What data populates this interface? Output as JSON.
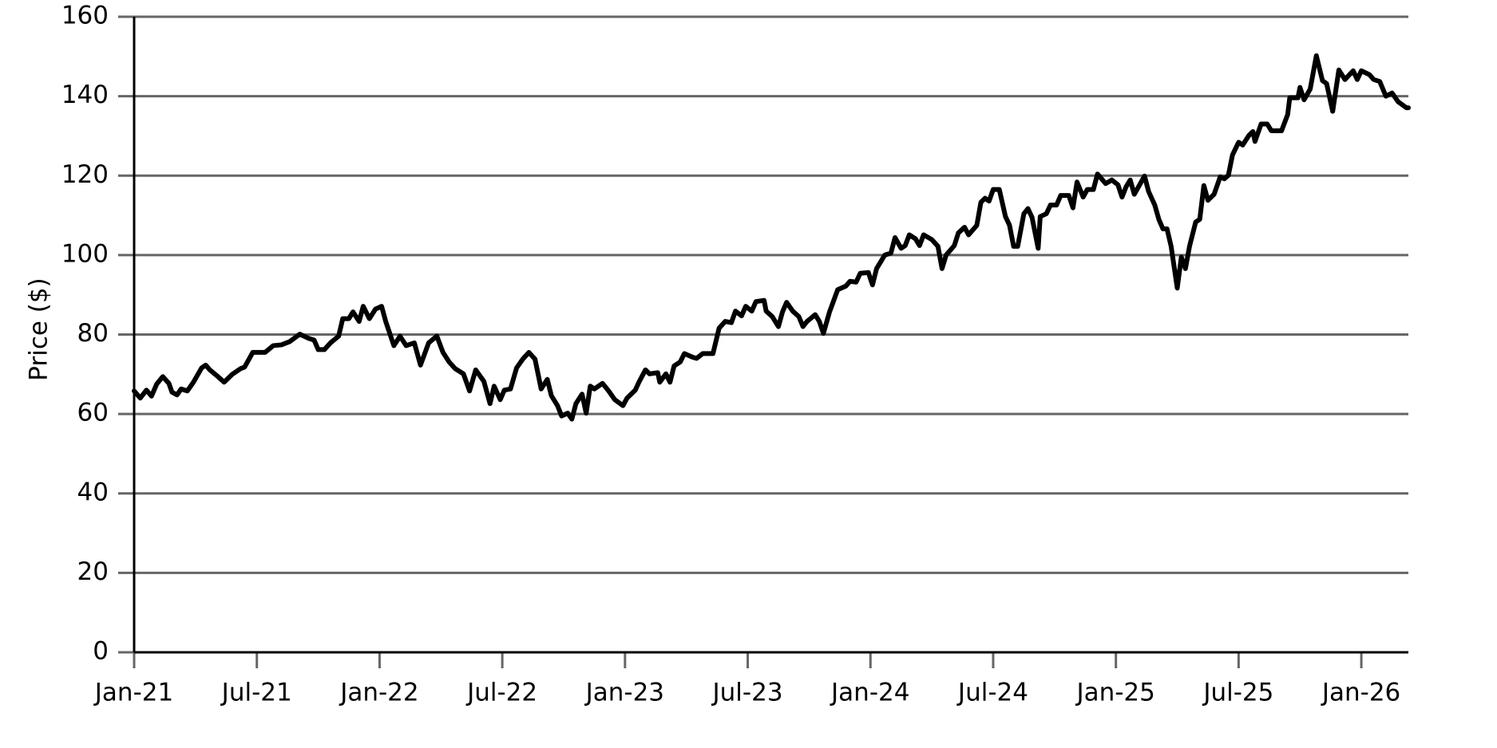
{
  "chart_data": {
    "type": "line",
    "ylabel": "Price ($)",
    "color": "#000000",
    "grid": true,
    "xlim": [
      0,
      62.3
    ],
    "ylim": [
      0,
      160
    ],
    "xticks": [
      {
        "value": 0,
        "label": "Jan-21"
      },
      {
        "value": 6,
        "label": "Jul-21"
      },
      {
        "value": 12,
        "label": "Jan-22"
      },
      {
        "value": 18,
        "label": "Jul-22"
      },
      {
        "value": 24,
        "label": "Jan-23"
      },
      {
        "value": 30,
        "label": "Jul-23"
      },
      {
        "value": 36,
        "label": "Jan-24"
      },
      {
        "value": 42,
        "label": "Jul-24"
      },
      {
        "value": 48,
        "label": "Jan-25"
      },
      {
        "value": 54,
        "label": "Jul-25"
      },
      {
        "value": 60,
        "label": "Jan-26"
      }
    ],
    "yticks": [
      0,
      20,
      40,
      60,
      80,
      100,
      120,
      140,
      160
    ],
    "x": [
      0,
      0.3,
      0.6,
      0.85,
      1.1,
      1.4,
      1.7,
      1.85,
      2.1,
      2.3,
      2.6,
      2.9,
      3.3,
      3.5,
      3.7,
      4.1,
      4.4,
      4.8,
      5.2,
      5.4,
      5.8,
      6.4,
      6.8,
      7.2,
      7.6,
      8.1,
      8.5,
      8.8,
      9.0,
      9.3,
      9.6,
      10,
      10.2,
      10.5,
      10.7,
      11,
      11.2,
      11.5,
      11.8,
      12.1,
      12.3,
      12.7,
      13,
      13.3,
      13.7,
      14.0,
      14.4,
      14.8,
      15.1,
      15.4,
      15.7,
      16.1,
      16.4,
      16.7,
      17.1,
      17.4,
      17.6,
      17.9,
      18.1,
      18.4,
      18.7,
      19,
      19.3,
      19.6,
      19.9,
      20.2,
      20.4,
      20.7,
      20.9,
      21.2,
      21.4,
      21.6,
      21.9,
      22.1,
      22.3,
      22.5,
      22.9,
      23.2,
      23.5,
      23.9,
      24.1,
      24.5,
      24.7,
      25,
      25.2,
      25.6,
      25.7,
      26,
      26.2,
      26.4,
      26.7,
      26.9,
      27.3,
      27.5,
      27.8,
      28.3,
      28.6,
      28.9,
      29.2,
      29.4,
      29.7,
      29.9,
      30.2,
      30.4,
      30.8,
      30.9,
      31.2,
      31.5,
      31.7,
      31.9,
      32.2,
      32.5,
      32.7,
      32.9,
      33.3,
      33.5,
      33.7,
      34,
      34.4,
      34.8,
      35,
      35.3,
      35.5,
      35.9,
      36.1,
      36.3,
      36.7,
      37,
      37.2,
      37.5,
      37.7,
      37.9,
      38.2,
      38.4,
      38.6,
      39,
      39.3,
      39.5,
      39.7,
      40.1,
      40.3,
      40.6,
      40.8,
      41.2,
      41.4,
      41.6,
      41.8,
      42,
      42.3,
      42.6,
      42.8,
      43,
      43.2,
      43.5,
      43.7,
      43.9,
      44.2,
      44.3,
      44.6,
      44.8,
      45.1,
      45.3,
      45.7,
      45.9,
      46.1,
      46.4,
      46.6,
      46.9,
      47.1,
      47.3,
      47.5,
      47.8,
      48.1,
      48.3,
      48.5,
      48.7,
      48.9,
      49.4,
      49.6,
      49.9,
      50.1,
      50.3,
      50.5,
      50.7,
      51,
      51.2,
      51.4,
      51.6,
      51.9,
      52.1,
      52.3,
      52.5,
      52.8,
      53.1,
      53.3,
      53.5,
      53.7,
      54,
      54.2,
      54.5,
      54.7,
      54.8,
      55.1,
      55.4,
      55.6,
      56.1,
      56.4,
      56.5,
      56.9,
      57,
      57.2,
      57.5,
      57.8,
      58.1,
      58.3,
      58.6,
      58.9,
      59.2,
      59.6,
      59.8,
      60,
      60.4,
      60.6,
      60.9,
      61.2,
      61.5,
      61.8,
      62.2,
      62.3
    ],
    "values": [
      65.8,
      64,
      66,
      64.5,
      67.5,
      69.4,
      67.7,
      65.5,
      64.8,
      66.3,
      65.8,
      68,
      71.6,
      72.3,
      71.1,
      69.4,
      68,
      70,
      71.4,
      71.8,
      75.5,
      75.5,
      77.2,
      77.4,
      78.2,
      80.1,
      79.1,
      78.6,
      76.2,
      76.2,
      77.9,
      79.6,
      84,
      84,
      85.7,
      83.3,
      87.1,
      84,
      86.4,
      87.1,
      83.3,
      77.2,
      79.6,
      77.2,
      77.9,
      72.3,
      77.9,
      79.6,
      75.5,
      73.1,
      71.4,
      70.1,
      65.8,
      71.1,
      68.2,
      62.6,
      67,
      63.6,
      66,
      66.3,
      71.6,
      73.8,
      75.5,
      73.8,
      66.3,
      68.7,
      64.6,
      62.1,
      59.5,
      60.2,
      58.7,
      62.6,
      65,
      60.2,
      67,
      66.3,
      67.7,
      65.8,
      63.6,
      62.1,
      64,
      66,
      68.2,
      71.1,
      70.1,
      70.4,
      68,
      70.1,
      68,
      72.1,
      73.1,
      75.2,
      74.3,
      74,
      75.2,
      75.2,
      81.6,
      83.3,
      83,
      85.9,
      84.7,
      87.1,
      85.9,
      88.3,
      88.6,
      85.9,
      84.5,
      82,
      85.7,
      88.1,
      85.9,
      84.5,
      82,
      83.3,
      85,
      83.3,
      80.3,
      85.7,
      91.3,
      92.2,
      93.4,
      93.2,
      95.4,
      95.6,
      92.5,
      96.6,
      100,
      100.5,
      104.4,
      101.7,
      102.4,
      105.1,
      104.1,
      102.4,
      105.1,
      103.9,
      102.2,
      96.6,
      100,
      102.4,
      105.6,
      107,
      105.1,
      107.5,
      113.3,
      114.3,
      113.6,
      116.5,
      116.5,
      109.7,
      107.5,
      102.2,
      102.2,
      110.4,
      111.7,
      109.5,
      101.7,
      109.7,
      110.4,
      112.6,
      112.6,
      115,
      115,
      111.9,
      118.4,
      114.6,
      116.5,
      116.5,
      120.4,
      119.2,
      118,
      118.9,
      117.7,
      114.6,
      117.2,
      118.9,
      115.3,
      119.9,
      116,
      112.6,
      109,
      106.6,
      106.6,
      102.2,
      91.7,
      99.5,
      96.6,
      102.2,
      108.3,
      109,
      117.5,
      113.8,
      115.3,
      119.7,
      119.2,
      120.1,
      125.2,
      128.4,
      127.7,
      130.1,
      131.1,
      128.6,
      133,
      133,
      131.3,
      131.3,
      135.4,
      139.6,
      139.6,
      142.2,
      139.1,
      141.8,
      150.2,
      143.9,
      143.2,
      136.2,
      146.6,
      144.2,
      146.4,
      144.2,
      146.4,
      145.4,
      144.2,
      143.7,
      140,
      140.8,
      138.6,
      137.1,
      137.1
    ]
  }
}
